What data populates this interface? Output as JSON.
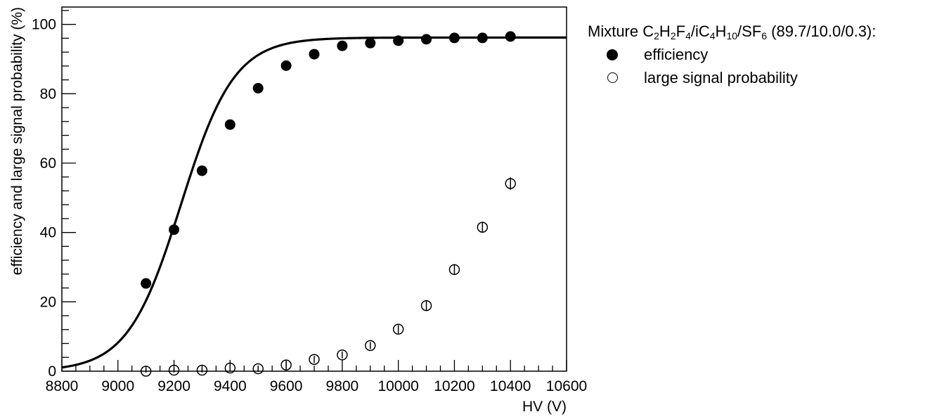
{
  "chart_data": {
    "type": "scatter",
    "title": "",
    "xlabel": "HV (V)",
    "ylabel": "efficiency and large signal probability (%)",
    "xlim": [
      8800,
      10600
    ],
    "ylim": [
      0,
      105
    ],
    "x_ticks": [
      8800,
      9000,
      9200,
      9400,
      9600,
      9800,
      10000,
      10200,
      10400,
      10600
    ],
    "y_ticks": [
      0,
      20,
      40,
      60,
      80,
      100
    ],
    "grid": false,
    "legend_placement": "outside-right",
    "legend": {
      "title_parts": [
        {
          "t": "Mixture C"
        },
        {
          "t": "2",
          "sub": true
        },
        {
          "t": "H"
        },
        {
          "t": "2",
          "sub": true
        },
        {
          "t": "F"
        },
        {
          "t": "4",
          "sub": true
        },
        {
          "t": "/iC"
        },
        {
          "t": "4",
          "sub": true
        },
        {
          "t": "H"
        },
        {
          "t": "10",
          "sub": true
        },
        {
          "t": "/SF"
        },
        {
          "t": "6",
          "sub": true
        },
        {
          "t": " (89.7/10.0/0.3):"
        }
      ]
    },
    "series": [
      {
        "name": "efficiency",
        "marker": "filled-circle",
        "x": [
          9100,
          9200,
          9300,
          9400,
          9500,
          9600,
          9700,
          9800,
          9900,
          10000,
          10100,
          10200,
          10300,
          10400
        ],
        "y": [
          25.3,
          40.8,
          57.8,
          71.1,
          81.6,
          88.1,
          91.4,
          93.8,
          94.6,
          95.3,
          95.7,
          96.1,
          96.1,
          96.5
        ]
      },
      {
        "name": "large signal probability",
        "marker": "open-circle",
        "x": [
          9100,
          9200,
          9300,
          9400,
          9500,
          9600,
          9700,
          9800,
          9900,
          10000,
          10100,
          10200,
          10300,
          10400
        ],
        "y": [
          0.0,
          0.3,
          0.3,
          0.9,
          0.7,
          1.8,
          3.4,
          4.7,
          7.4,
          12.1,
          18.9,
          29.3,
          41.5,
          54.1
        ],
        "yerr": [
          0.4,
          0.4,
          0.4,
          0.6,
          0.5,
          0.6,
          0.6,
          0.6,
          0.6,
          0.8,
          0.9,
          1.1,
          1.2,
          1.4
        ]
      }
    ],
    "fit": {
      "type": "sigmoid",
      "applies_to": "efficiency",
      "plateau": 96.2,
      "midpoint": 9225,
      "width": 95,
      "x_range": [
        8800,
        10600
      ]
    }
  }
}
